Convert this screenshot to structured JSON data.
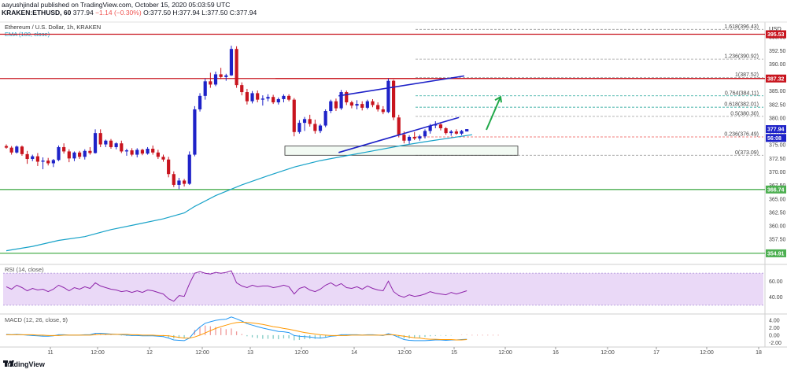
{
  "header": {
    "publisher_line": "aayushjindal published on TradingView.com, October 15, 2020 05:03:59 UTC",
    "symbol": "KRAKEN:ETHUSD, 60",
    "last_price": "377.94",
    "change": "−1.14 (−0.30%)",
    "ohlc": "O:377.50 H:377.94 L:377.50 C:377.94"
  },
  "pane_labels": {
    "instrument": "Ethereum / U.S. Dollar, 1h, KRAKEN",
    "ema": "EMA (100, close)",
    "rsi": "RSI (14, close)",
    "macd": "MACD (12, 26, close, 9)",
    "currency": "USD"
  },
  "footer": {
    "brand": "TradingView"
  },
  "colors": {
    "up": "#1e22c8",
    "down": "#c8141e",
    "ema": "#17a2c8",
    "support_line": "#4caf50",
    "resistance_line": "#c8141e",
    "channel": "#1e22c8",
    "arrow": "#21a84a",
    "rsi_fill": "#ead9f7",
    "rsi_line": "#8e24aa",
    "macd_line": "#2196f3",
    "signal_line": "#ff9800"
  },
  "chart_data": {
    "type": "candlestick",
    "price_axis": {
      "ticks": [
        395.0,
        392.5,
        390.0,
        387.5,
        385.0,
        382.5,
        380.0,
        377.5,
        375.0,
        372.5,
        370.0,
        367.5,
        365.0,
        362.5,
        360.0,
        357.5,
        355.0
      ],
      "tick_labels": [
        "395.00",
        "392.50",
        "390.00",
        "387.50",
        "385.00",
        "382.50",
        "380.00",
        "377.50",
        "375.00",
        "372.50",
        "370.00",
        "367.50",
        "365.00",
        "362.50",
        "360.00",
        "357.50",
        "355.00"
      ],
      "range": [
        353.0,
        397.5
      ]
    },
    "time_axis": {
      "labels": [
        "11",
        "12:00",
        "12",
        "12:00",
        "13",
        "12:00",
        "14",
        "12:00",
        "15",
        "12:00",
        "16",
        "12:00",
        "17",
        "12:00",
        "18"
      ]
    },
    "price_tags": [
      {
        "value": 395.53,
        "label": "395.53",
        "color": "#c8141e"
      },
      {
        "value": 387.32,
        "label": "387.32",
        "color": "#c8141e"
      },
      {
        "value": 377.94,
        "label": "377.94",
        "color": "#1e22c8"
      },
      {
        "value": 376.3,
        "label": "56:08",
        "color": "#1e22c8"
      },
      {
        "value": 366.74,
        "label": "366.74",
        "color": "#4caf50"
      },
      {
        "value": 354.91,
        "label": "354.91",
        "color": "#4caf50"
      }
    ],
    "horizontal_lines": [
      {
        "value": 395.53,
        "color": "#c8141e"
      },
      {
        "value": 387.32,
        "color": "#c8141e"
      },
      {
        "value": 366.74,
        "color": "#4caf50"
      },
      {
        "value": 354.91,
        "color": "#4caf50"
      }
    ],
    "fibonacci": [
      {
        "ratio_label": "1.618(396.43)",
        "value": 396.43
      },
      {
        "ratio_label": "1.236(390.92)",
        "value": 390.92
      },
      {
        "ratio_label": "1(387.52)",
        "value": 387.52
      },
      {
        "ratio_label": "0.764(384.11)",
        "value": 384.11
      },
      {
        "ratio_label": "0.618(382.01)",
        "value": 382.01
      },
      {
        "ratio_label": "0.5(380.30)",
        "value": 380.3
      },
      {
        "ratio_label": "0.236(376.49)",
        "value": 376.49
      },
      {
        "ratio_label": "0(373.09)",
        "value": 373.09
      }
    ],
    "candles": [
      [
        374.8,
        375.1,
        374.3,
        374.5
      ],
      [
        374.5,
        374.8,
        373.2,
        373.6
      ],
      [
        373.6,
        374.9,
        373.4,
        374.7
      ],
      [
        374.7,
        374.9,
        373.0,
        373.3
      ],
      [
        373.3,
        373.9,
        371.5,
        372.4
      ],
      [
        372.4,
        373.2,
        372.0,
        372.9
      ],
      [
        372.9,
        373.5,
        371.1,
        371.9
      ],
      [
        371.9,
        372.7,
        370.5,
        372.1
      ],
      [
        372.1,
        372.6,
        371.2,
        371.6
      ],
      [
        371.6,
        372.4,
        370.9,
        372.2
      ],
      [
        372.2,
        374.9,
        372.0,
        374.6
      ],
      [
        374.6,
        375.3,
        373.4,
        373.8
      ],
      [
        373.8,
        374.2,
        371.8,
        372.5
      ],
      [
        372.5,
        373.8,
        372.0,
        373.6
      ],
      [
        373.6,
        373.9,
        372.4,
        372.8
      ],
      [
        372.8,
        374.2,
        372.3,
        373.9
      ],
      [
        373.9,
        374.6,
        373.2,
        373.5
      ],
      [
        373.5,
        377.9,
        373.4,
        377.2
      ],
      [
        377.2,
        377.9,
        374.6,
        375.1
      ],
      [
        375.1,
        376.0,
        374.6,
        375.8
      ],
      [
        375.8,
        376.1,
        374.3,
        374.6
      ],
      [
        374.6,
        375.5,
        374.2,
        375.3
      ],
      [
        375.3,
        375.8,
        373.5,
        373.8
      ],
      [
        373.8,
        374.3,
        373.0,
        374.0
      ],
      [
        374.0,
        374.4,
        372.9,
        373.2
      ],
      [
        373.2,
        374.4,
        372.7,
        374.1
      ],
      [
        374.1,
        374.3,
        373.1,
        373.4
      ],
      [
        373.4,
        374.6,
        373.2,
        374.3
      ],
      [
        374.3,
        374.9,
        373.2,
        373.6
      ],
      [
        373.6,
        374.1,
        372.4,
        372.8
      ],
      [
        372.8,
        373.2,
        371.9,
        372.3
      ],
      [
        372.3,
        372.8,
        369.0,
        369.6
      ],
      [
        369.6,
        370.1,
        367.2,
        367.6
      ],
      [
        367.6,
        368.9,
        366.8,
        368.4
      ],
      [
        368.4,
        368.7,
        367.3,
        367.8
      ],
      [
        367.8,
        373.8,
        367.6,
        373.2
      ],
      [
        373.2,
        382.2,
        372.9,
        381.6
      ],
      [
        381.6,
        384.6,
        381.2,
        384.1
      ],
      [
        384.1,
        387.3,
        383.4,
        386.8
      ],
      [
        386.8,
        388.4,
        385.6,
        386.2
      ],
      [
        386.2,
        388.6,
        385.9,
        388.1
      ],
      [
        388.1,
        389.3,
        387.2,
        387.6
      ],
      [
        387.6,
        388.2,
        386.9,
        387.9
      ],
      [
        387.9,
        393.4,
        387.8,
        392.8
      ],
      [
        392.8,
        393.3,
        385.6,
        386.1
      ],
      [
        386.1,
        386.6,
        384.2,
        384.8
      ],
      [
        384.8,
        385.4,
        382.5,
        383.1
      ],
      [
        383.1,
        385.0,
        382.7,
        384.6
      ],
      [
        384.6,
        385.1,
        382.9,
        383.4
      ],
      [
        383.4,
        384.2,
        382.3,
        383.6
      ],
      [
        383.6,
        384.4,
        383.1,
        383.9
      ],
      [
        383.9,
        384.3,
        382.6,
        382.9
      ],
      [
        382.9,
        383.8,
        382.5,
        383.5
      ],
      [
        383.5,
        384.4,
        382.9,
        384.1
      ],
      [
        384.1,
        384.4,
        383.1,
        383.4
      ],
      [
        383.4,
        383.7,
        376.6,
        377.4
      ],
      [
        377.4,
        379.6,
        377.1,
        379.1
      ],
      [
        379.1,
        380.2,
        377.6,
        379.8
      ],
      [
        379.8,
        380.6,
        378.4,
        378.9
      ],
      [
        378.9,
        379.7,
        377.1,
        377.6
      ],
      [
        377.6,
        378.9,
        377.2,
        378.6
      ],
      [
        378.6,
        381.6,
        378.3,
        381.3
      ],
      [
        381.3,
        383.4,
        380.9,
        383.1
      ],
      [
        383.1,
        383.6,
        381.3,
        381.8
      ],
      [
        381.8,
        385.2,
        381.5,
        384.8
      ],
      [
        384.8,
        385.1,
        382.4,
        382.9
      ],
      [
        382.9,
        383.2,
        381.8,
        382.3
      ],
      [
        382.3,
        383.3,
        381.6,
        382.6
      ],
      [
        382.6,
        383.1,
        381.4,
        381.9
      ],
      [
        381.9,
        383.4,
        381.6,
        383.1
      ],
      [
        383.1,
        383.5,
        382.0,
        382.4
      ],
      [
        382.4,
        382.9,
        381.2,
        381.6
      ],
      [
        381.6,
        382.2,
        380.7,
        381.1
      ],
      [
        381.1,
        387.3,
        380.9,
        386.9
      ],
      [
        386.9,
        387.1,
        379.6,
        380.1
      ],
      [
        380.1,
        380.6,
        376.4,
        376.9
      ],
      [
        376.9,
        377.5,
        375.3,
        375.8
      ],
      [
        375.8,
        376.8,
        375.2,
        376.5
      ],
      [
        376.5,
        377.4,
        375.9,
        376.2
      ],
      [
        376.2,
        376.9,
        375.8,
        376.6
      ],
      [
        376.6,
        377.9,
        376.2,
        377.6
      ],
      [
        377.6,
        378.9,
        377.1,
        378.6
      ],
      [
        378.6,
        379.4,
        378.1,
        378.8
      ],
      [
        378.8,
        379.2,
        377.7,
        378.1
      ],
      [
        378.1,
        378.3,
        376.9,
        377.2
      ],
      [
        377.2,
        377.8,
        376.7,
        377.5
      ],
      [
        377.5,
        377.9,
        376.9,
        377.1
      ],
      [
        377.1,
        377.8,
        376.8,
        377.6
      ],
      [
        377.5,
        377.94,
        377.5,
        377.94
      ]
    ],
    "ema_100": [
      [
        0,
        355.4
      ],
      [
        5,
        356.2
      ],
      [
        10,
        357.3
      ],
      [
        15,
        358.0
      ],
      [
        20,
        359.3
      ],
      [
        25,
        360.3
      ],
      [
        30,
        361.3
      ],
      [
        34,
        362.4
      ],
      [
        36,
        363.6
      ],
      [
        40,
        365.6
      ],
      [
        45,
        367.6
      ],
      [
        50,
        369.3
      ],
      [
        55,
        370.9
      ],
      [
        60,
        372.1
      ],
      [
        65,
        373.0
      ],
      [
        70,
        373.9
      ],
      [
        75,
        374.8
      ],
      [
        80,
        375.6
      ],
      [
        89,
        376.9
      ]
    ],
    "annotations": {
      "channel_upper": [
        [
          63.5,
          384.1
        ],
        [
          87.5,
          387.8
        ]
      ],
      "channel_lower": [
        [
          63.5,
          373.6
        ],
        [
          86.5,
          380.1
        ]
      ],
      "support_box": {
        "from_index": 58,
        "to_index": 103,
        "low": 373.09,
        "high": 374.8
      },
      "arrow": {
        "from": [
          92,
          377.8
        ],
        "to": [
          97,
          383.9
        ]
      }
    },
    "rsi": {
      "ticks": [
        60.0,
        40.0
      ],
      "tick_labels": [
        "60.00",
        "40.00"
      ],
      "band": [
        30,
        70
      ],
      "values": [
        53,
        50,
        55,
        52,
        48,
        51,
        49,
        50,
        47,
        50,
        55,
        52,
        48,
        52,
        50,
        53,
        51,
        58,
        54,
        52,
        50,
        49,
        47,
        48,
        46,
        48,
        46,
        49,
        48,
        46,
        44,
        38,
        35,
        42,
        41,
        57,
        70,
        72,
        70,
        69,
        71,
        70,
        71,
        73,
        58,
        54,
        52,
        55,
        53,
        54,
        54,
        52,
        53,
        55,
        53,
        44,
        51,
        53,
        49,
        47,
        50,
        55,
        58,
        54,
        57,
        52,
        51,
        53,
        50,
        54,
        51,
        49,
        48,
        60,
        47,
        42,
        40,
        43,
        41,
        42,
        44,
        47,
        45,
        44,
        43,
        46,
        44,
        46,
        48
      ]
    },
    "macd": {
      "ticks": [
        4.0,
        2.0,
        0.0,
        -2.0
      ],
      "tick_labels": [
        "4.00",
        "2.00",
        "0.00",
        "-2.00"
      ],
      "macd_line": [
        0.2,
        0.1,
        0.2,
        0.1,
        0.0,
        -0.1,
        -0.2,
        -0.3,
        -0.3,
        -0.2,
        0.1,
        0.1,
        0.0,
        0.0,
        0.0,
        0.1,
        0.1,
        0.5,
        0.5,
        0.4,
        0.3,
        0.2,
        0.1,
        0.0,
        -0.1,
        -0.1,
        -0.2,
        -0.2,
        -0.2,
        -0.3,
        -0.4,
        -0.8,
        -1.3,
        -1.4,
        -1.5,
        -0.8,
        0.9,
        2.2,
        3.2,
        3.6,
        4.0,
        4.2,
        4.3,
        4.9,
        4.4,
        3.8,
        3.1,
        2.7,
        2.3,
        1.9,
        1.6,
        1.3,
        1.0,
        0.9,
        0.7,
        -0.1,
        -0.3,
        -0.4,
        -0.5,
        -0.7,
        -0.8,
        -0.6,
        -0.3,
        -0.2,
        0.1,
        0.1,
        0.1,
        0.1,
        0.0,
        0.1,
        0.1,
        0.0,
        -0.1,
        0.4,
        0.0,
        -0.6,
        -1.2,
        -1.4,
        -1.5,
        -1.5,
        -1.5,
        -1.4,
        -1.3,
        -1.3,
        -1.4,
        -1.3,
        -1.3,
        -1.2,
        -1.1
      ],
      "signal_line": [
        0.1,
        0.1,
        0.1,
        0.1,
        0.1,
        0.1,
        0.0,
        0.0,
        -0.1,
        -0.1,
        -0.1,
        0.0,
        0.0,
        0.0,
        0.0,
        0.0,
        0.0,
        0.1,
        0.2,
        0.2,
        0.2,
        0.2,
        0.2,
        0.2,
        0.1,
        0.1,
        0.0,
        0.0,
        0.0,
        -0.1,
        -0.1,
        -0.2,
        -0.4,
        -0.6,
        -0.8,
        -0.8,
        -0.5,
        0.0,
        0.6,
        1.2,
        1.8,
        2.3,
        2.7,
        3.1,
        3.4,
        3.5,
        3.4,
        3.3,
        3.1,
        2.9,
        2.6,
        2.3,
        2.1,
        1.8,
        1.6,
        1.3,
        1.0,
        0.7,
        0.5,
        0.3,
        0.1,
        0.0,
        -0.1,
        -0.1,
        -0.1,
        -0.1,
        0.0,
        0.0,
        0.0,
        0.0,
        0.0,
        0.0,
        0.0,
        0.1,
        0.1,
        -0.1,
        -0.3,
        -0.5,
        -0.7,
        -0.8,
        -1.0,
        -1.1,
        -1.1,
        -1.2,
        -1.2,
        -1.2,
        -1.3,
        -1.3,
        -1.2
      ]
    }
  }
}
